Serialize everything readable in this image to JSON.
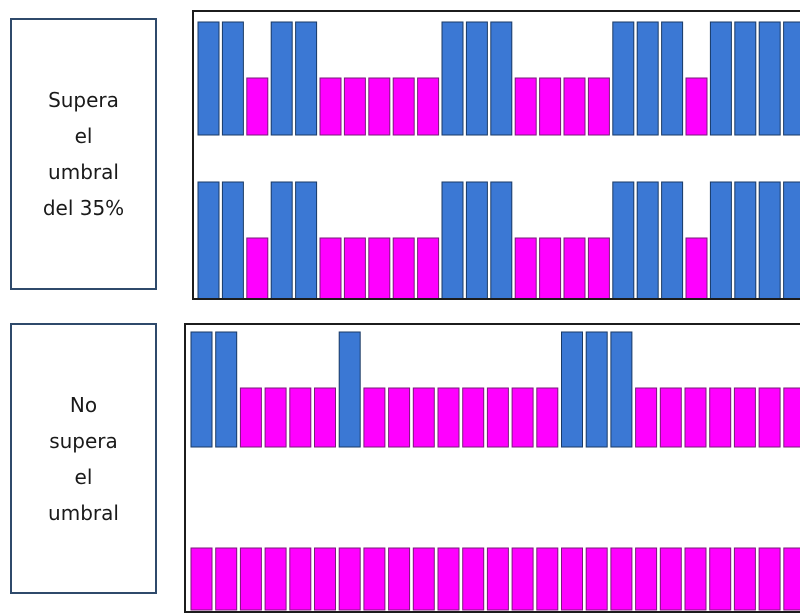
{
  "labels": {
    "top": [
      "Supera",
      "el",
      "umbral",
      "del 35%"
    ],
    "bottom": [
      "No",
      "supera",
      "el",
      "umbral"
    ]
  },
  "colors": {
    "blue": "#3b78d4",
    "magenta": "#ff00ff",
    "bar_stroke": "#1a3a66",
    "magenta_stroke": "#7a1a7a"
  },
  "rows": {
    "top_row_1": "BBMBBMMMMMBBBMMMMBBBMBBBB",
    "top_row_2": "BBMBBMMMMMBBBMMMMBBBMBBBB",
    "bottom_row_1": "BBMMMMBMMMMMMMMBBBMMMMMMMM",
    "bottom_row_2": "MMMMMMMMMMMMMMMMMMMMMMMMMM"
  }
}
